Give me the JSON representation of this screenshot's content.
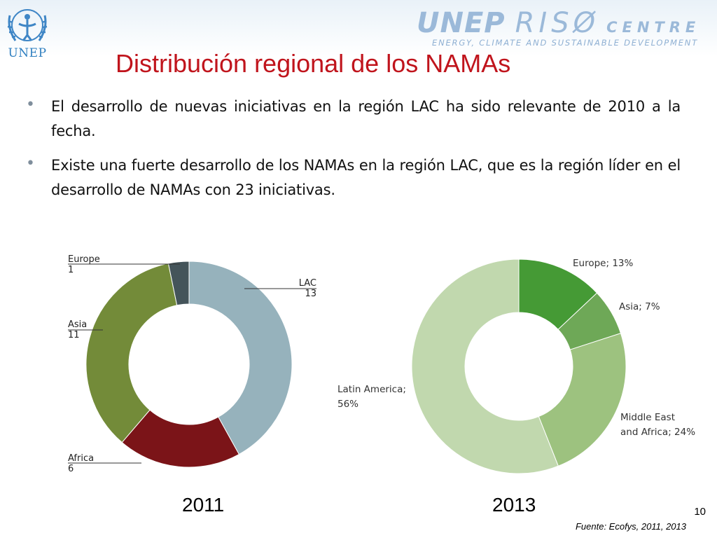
{
  "header": {
    "unep_logo_text": "UNEP",
    "riso_logo": {
      "unep": "UNEP",
      "riso": "RISØ",
      "centre": "CENTRE",
      "subtitle": "ENERGY, CLIMATE AND SUSTAINABLE DEVELOPMENT"
    }
  },
  "slide": {
    "title": "Distribución regional de los NAMAs",
    "bullets": [
      "El desarrollo de nuevas iniciativas en la región LAC ha sido relevante de 2010 a la fecha.",
      "Existe una fuerte desarrollo de los NAMAs en la región LAC, que es la región líder en el desarrollo de NAMAs con 23 iniciativas."
    ],
    "bullet_glyph": "•",
    "year_2011": "2011",
    "year_2013": "2013",
    "page_number": "10",
    "source": "Fuente: Ecofys, 2011, 2013"
  },
  "chart_data": [
    {
      "type": "pie",
      "year": "2011",
      "donut": true,
      "start": "top",
      "direction": "clockwise",
      "slices": [
        {
          "name": "LAC",
          "value": 13,
          "label_value": "13",
          "color": "#96b2bc"
        },
        {
          "name": "Africa",
          "value": 6,
          "label_value": "6",
          "color": "#7b1418"
        },
        {
          "name": "Asia",
          "value": 11,
          "label_value": "11",
          "color": "#738b39"
        },
        {
          "name": "Europe",
          "value": 1,
          "label_value": "1",
          "color": "#44545a"
        }
      ]
    },
    {
      "type": "pie",
      "year": "2013",
      "donut": true,
      "start": "top",
      "direction": "clockwise",
      "slices": [
        {
          "name": "Europe",
          "value": 13,
          "label": "Europe; 13%",
          "color": "#459a35"
        },
        {
          "name": "Asia",
          "value": 7,
          "label": "Asia; 7%",
          "color": "#6ea857"
        },
        {
          "name": "Middle East and Africa",
          "value": 24,
          "label_lines": [
            "Middle East",
            "and Africa; 24%"
          ],
          "color": "#9dc27f"
        },
        {
          "name": "Latin America",
          "value": 56,
          "label_lines": [
            "Latin America;",
            "56%"
          ],
          "color": "#c1d8ae"
        }
      ]
    }
  ]
}
